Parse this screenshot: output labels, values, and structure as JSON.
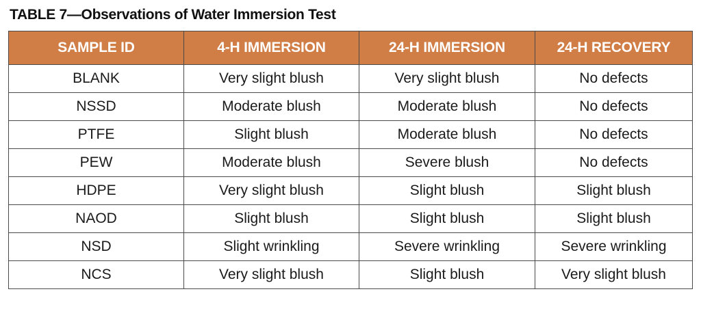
{
  "caption": "TABLE 7—Observations of Water Immersion Test",
  "colors": {
    "header_background": "#d07d46",
    "header_text": "#ffffff",
    "border": "#4a4a4a"
  },
  "table": {
    "headers": [
      "SAMPLE ID",
      "4-H IMMERSION",
      "24-H IMMERSION",
      "24-H RECOVERY"
    ],
    "rows": [
      [
        "BLANK",
        "Very slight blush",
        "Very slight blush",
        "No defects"
      ],
      [
        "NSSD",
        "Moderate blush",
        "Moderate blush",
        "No defects"
      ],
      [
        "PTFE",
        "Slight blush",
        "Moderate blush",
        "No defects"
      ],
      [
        "PEW",
        "Moderate blush",
        "Severe blush",
        "No defects"
      ],
      [
        "HDPE",
        "Very slight blush",
        "Slight blush",
        "Slight blush"
      ],
      [
        "NAOD",
        "Slight blush",
        "Slight blush",
        "Slight blush"
      ],
      [
        "NSD",
        "Slight wrinkling",
        "Severe wrinkling",
        "Severe wrinkling"
      ],
      [
        "NCS",
        "Very slight blush",
        "Slight blush",
        "Very slight blush"
      ]
    ]
  }
}
